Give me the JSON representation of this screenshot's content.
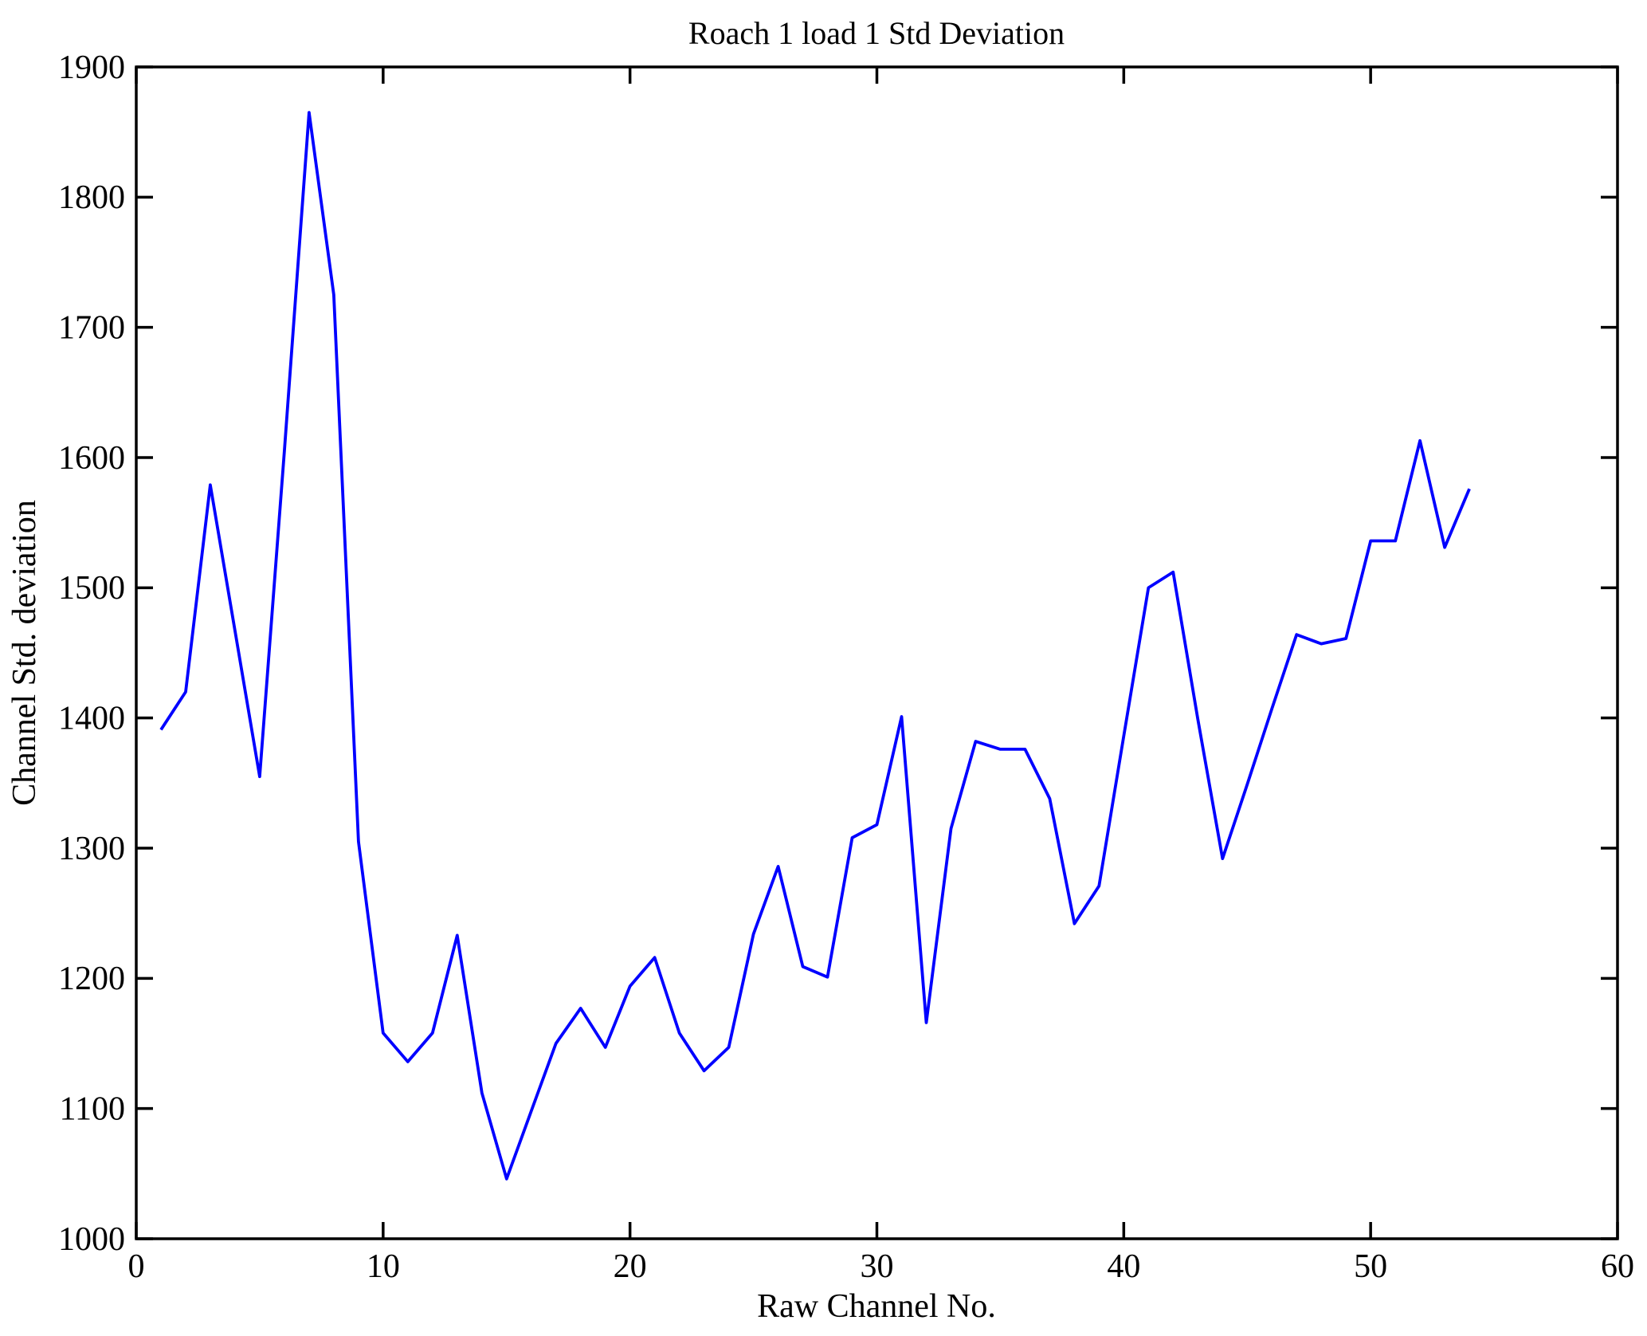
{
  "figure": {
    "title": "Roach 1 load 1 Std Deviation",
    "xlabel": "Raw Channel No.",
    "ylabel": "Channel Std. deviation"
  },
  "chart_data": {
    "type": "line",
    "title": "Roach 1 load 1 Std Deviation",
    "xlabel": "Raw Channel No.",
    "ylabel": "Channel Std. deviation",
    "x": [
      1,
      2,
      3,
      4,
      5,
      6,
      7,
      8,
      9,
      10,
      11,
      12,
      13,
      14,
      15,
      16,
      17,
      18,
      19,
      20,
      21,
      22,
      23,
      24,
      25,
      26,
      27,
      28,
      29,
      30,
      31,
      32,
      33,
      34,
      35,
      36,
      37,
      38,
      39,
      40,
      41,
      42,
      43,
      44,
      45,
      46,
      47,
      48,
      49,
      50,
      51,
      52,
      53,
      54
    ],
    "values": [
      1391,
      1420,
      1579,
      1467,
      1355,
      1605,
      1865,
      1725,
      1305,
      1158,
      1136,
      1158,
      1233,
      1112,
      1046,
      1098,
      1150,
      1177,
      1147,
      1194,
      1216,
      1158,
      1129,
      1147,
      1234,
      1286,
      1209,
      1201,
      1308,
      1318,
      1401,
      1166,
      1315,
      1382,
      1376,
      1376,
      1338,
      1242,
      1271,
      1386,
      1500,
      1512,
      1399,
      1292,
      1349,
      1407,
      1464,
      1457,
      1461,
      1536,
      1536,
      1613,
      1531,
      1576
    ],
    "xlim": [
      0,
      60
    ],
    "ylim": [
      1000,
      1900
    ],
    "xticks": [
      0,
      10,
      20,
      30,
      40,
      50,
      60
    ],
    "yticks": [
      1000,
      1100,
      1200,
      1300,
      1400,
      1500,
      1600,
      1700,
      1800,
      1900
    ],
    "grid": false,
    "legend": "none",
    "line_color": "#0000ff",
    "axis_color": "#000000",
    "background": "#ffffff"
  }
}
